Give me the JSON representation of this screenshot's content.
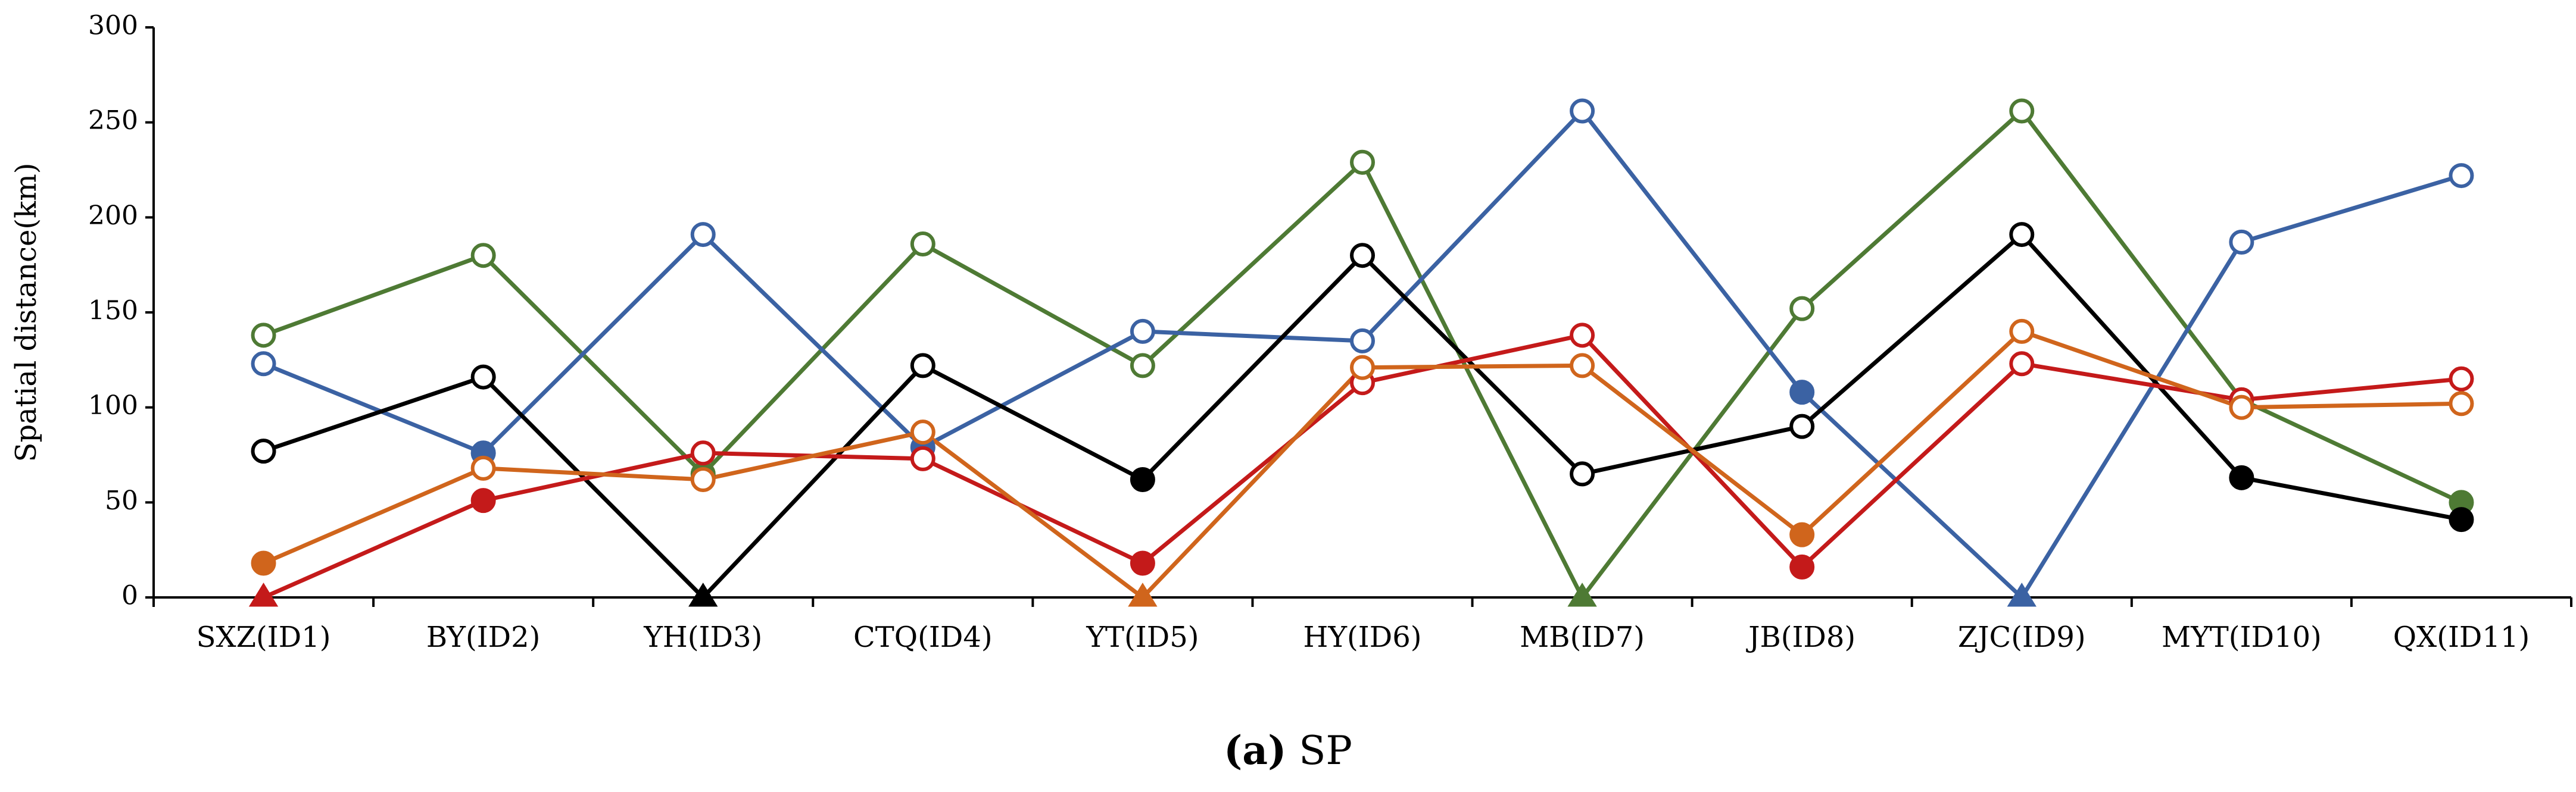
{
  "chart_data": {
    "type": "line",
    "caption_letter": "(a)",
    "caption_text": "SP",
    "ylabel": "Spatial distance(km)",
    "xlabel": "",
    "ylim": [
      0,
      300
    ],
    "yticks": [
      0,
      50,
      100,
      150,
      200,
      250,
      300
    ],
    "grid": false,
    "categories": [
      "SXZ(ID1)",
      "BY(ID2)",
      "YH(ID3)",
      "CTQ(ID4)",
      "YT(ID5)",
      "HY(ID6)",
      "MB(ID7)",
      "JB(ID8)",
      "ZJC(ID9)",
      "MYT(ID10)",
      "QX(ID11)"
    ],
    "series": [
      {
        "name": "green",
        "color": "#4e7a34",
        "values": [
          138,
          180,
          65,
          186,
          122,
          229,
          0,
          152,
          256,
          104,
          50
        ],
        "markers": [
          "open",
          "open",
          "filled",
          "open",
          "open",
          "open",
          "triangle",
          "open",
          "open",
          "filled",
          "filled"
        ]
      },
      {
        "name": "blue",
        "color": "#3b62a3",
        "values": [
          123,
          76,
          191,
          79,
          140,
          135,
          256,
          108,
          0,
          187,
          222
        ],
        "markers": [
          "open",
          "filled",
          "open",
          "filled",
          "open",
          "open",
          "open",
          "filled",
          "triangle",
          "open",
          "open"
        ]
      },
      {
        "name": "black",
        "color": "#000000",
        "values": [
          77,
          116,
          0,
          122,
          62,
          180,
          65,
          90,
          191,
          63,
          41
        ],
        "markers": [
          "open",
          "open",
          "triangle",
          "open",
          "filled",
          "open",
          "open",
          "open",
          "open",
          "filled",
          "filled"
        ]
      },
      {
        "name": "red",
        "color": "#c41a1a",
        "values": [
          0,
          51,
          76,
          73,
          18,
          113,
          138,
          16,
          123,
          104,
          115
        ],
        "markers": [
          "triangle",
          "filled",
          "open",
          "open",
          "filled",
          "open",
          "open",
          "filled",
          "open",
          "open",
          "open"
        ]
      },
      {
        "name": "orange",
        "color": "#d0651c",
        "values": [
          18,
          68,
          62,
          87,
          0,
          121,
          122,
          33,
          140,
          100,
          102
        ],
        "markers": [
          "filled",
          "open",
          "open",
          "open",
          "triangle",
          "open",
          "open",
          "filled",
          "open",
          "open",
          "open"
        ]
      }
    ]
  }
}
